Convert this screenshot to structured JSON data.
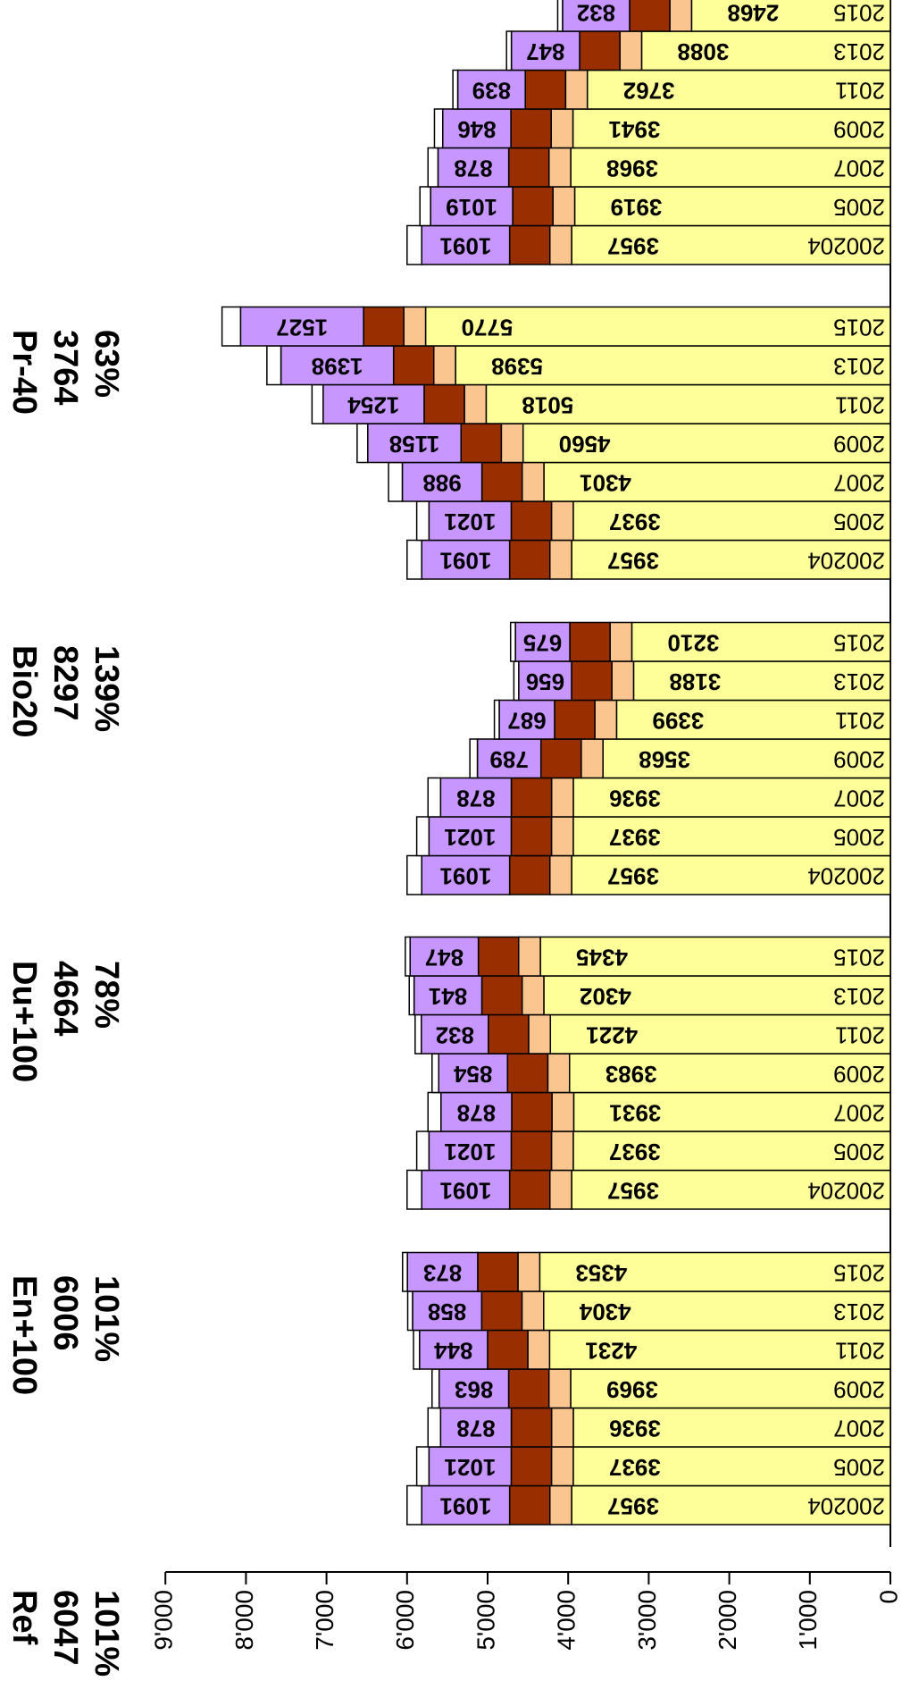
{
  "chart_data": {
    "type": "bar",
    "orientation": "horizontal-stacked",
    "value_axis": {
      "range": [
        0,
        9000
      ],
      "ticks": [
        0,
        1000,
        2000,
        3000,
        4000,
        5000,
        6000,
        7000,
        8000,
        9000
      ],
      "tick_labels": [
        "0",
        "1'000",
        "2'000",
        "3'000",
        "4'000",
        "5'000",
        "6'000",
        "7'000",
        "8'000",
        "9'000"
      ]
    },
    "colors": {
      "base": "#ffff99",
      "segment2": "#fbc58f",
      "segment3": "#992f00",
      "segment4": "#c896ff",
      "segment5": "#ffffff",
      "outline": "#000000"
    },
    "segment_widths_approx": [
      270,
      500,
      120,
      0
    ],
    "groups": [
      {
        "name": "Ref",
        "total": "6047",
        "pct": "101%",
        "bars": [
          {
            "year": "200204",
            "base": 3957,
            "top": 1091,
            "end": 6000
          },
          {
            "year": "2005",
            "base": 3937,
            "top": 1021,
            "end": 5880
          },
          {
            "year": "2007",
            "base": 3936,
            "top": 878,
            "end": 5740
          },
          {
            "year": "2009",
            "base": 3969,
            "top": 863,
            "end": 5690
          },
          {
            "year": "2011",
            "base": 4231,
            "top": 844,
            "end": 5920
          },
          {
            "year": "2013",
            "base": 4304,
            "top": 858,
            "end": 5980
          },
          {
            "year": "2015",
            "base": 4353,
            "top": 873,
            "end": 6047
          }
        ]
      },
      {
        "name": "En+100",
        "total": "6006",
        "pct": "101%",
        "bars": [
          {
            "year": "200204",
            "base": 3957,
            "top": 1091,
            "end": 6000
          },
          {
            "year": "2005",
            "base": 3937,
            "top": 1021,
            "end": 5880
          },
          {
            "year": "2007",
            "base": 3931,
            "top": 878,
            "end": 5740
          },
          {
            "year": "2009",
            "base": 3983,
            "top": 854,
            "end": 5690
          },
          {
            "year": "2011",
            "base": 4221,
            "top": 832,
            "end": 5900
          },
          {
            "year": "2013",
            "base": 4302,
            "top": 841,
            "end": 5970
          },
          {
            "year": "2015",
            "base": 4345,
            "top": 847,
            "end": 6006
          }
        ]
      },
      {
        "name": "Du+100",
        "total": "4664",
        "pct": "78%",
        "bars": [
          {
            "year": "200204",
            "base": 3957,
            "top": 1091,
            "end": 6000
          },
          {
            "year": "2005",
            "base": 3937,
            "top": 1021,
            "end": 5880
          },
          {
            "year": "2007",
            "base": 3936,
            "top": 878,
            "end": 5740
          },
          {
            "year": "2009",
            "base": 3568,
            "top": 789,
            "end": 5220
          },
          {
            "year": "2011",
            "base": 3399,
            "top": 687,
            "end": 4880
          },
          {
            "year": "2013",
            "base": 3188,
            "top": 656,
            "end": 4620
          },
          {
            "year": "2015",
            "base": 3210,
            "top": 675,
            "end": 4664
          }
        ]
      },
      {
        "name": "Bio20",
        "total": "8297",
        "pct": "139%",
        "bars": [
          {
            "year": "200204",
            "base": 3957,
            "top": 1091,
            "end": 6000
          },
          {
            "year": "2005",
            "base": 3937,
            "top": 1021,
            "end": 5880
          },
          {
            "year": "2007",
            "base": 4301,
            "top": 988,
            "end": 6230
          },
          {
            "year": "2009",
            "base": 4560,
            "top": 1158,
            "end": 6620
          },
          {
            "year": "2011",
            "base": 5018,
            "top": 1254,
            "end": 7180
          },
          {
            "year": "2013",
            "base": 5398,
            "top": 1398,
            "end": 7740
          },
          {
            "year": "2015",
            "base": 5770,
            "top": 1527,
            "end": 8297
          }
        ]
      },
      {
        "name": "Pr-40",
        "total": "3764",
        "pct": "63%",
        "bars": [
          {
            "year": "200204",
            "base": 3957,
            "top": 1091,
            "end": 6000
          },
          {
            "year": "2005",
            "base": 3919,
            "top": 1019,
            "end": 5840
          },
          {
            "year": "2007",
            "base": 3968,
            "top": 878,
            "end": 5740
          },
          {
            "year": "2009",
            "base": 3941,
            "top": 846,
            "end": 5660
          },
          {
            "year": "2011",
            "base": 3762,
            "top": 839,
            "end": 5390
          },
          {
            "year": "2013",
            "base": 3088,
            "top": 847,
            "end": 4430
          },
          {
            "year": "2015",
            "base": 2468,
            "top": 832,
            "end": 3764
          }
        ]
      }
    ]
  }
}
